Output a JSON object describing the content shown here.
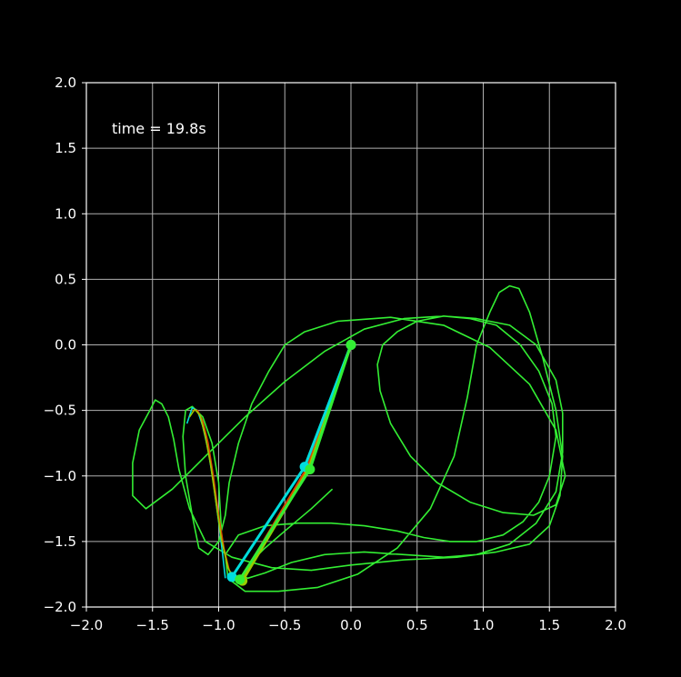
{
  "chart_data": {
    "type": "line",
    "title": "",
    "xlabel": "",
    "ylabel": "",
    "xlim": [
      -2.0,
      2.0
    ],
    "ylim": [
      -2.0,
      2.0
    ],
    "grid": true,
    "background": "#000000",
    "x_ticks": [
      "−2.0",
      "−1.5",
      "−1.0",
      "−0.5",
      "0.0",
      "0.5",
      "1.0",
      "1.5",
      "2.0"
    ],
    "x_tick_values": [
      -2.0,
      -1.5,
      -1.0,
      -0.5,
      0.0,
      0.5,
      1.0,
      1.5,
      2.0
    ],
    "y_ticks": [
      "2.0",
      "1.5",
      "1.0",
      "0.5",
      "0.0",
      "−0.5",
      "−1.0",
      "−1.5",
      "−2.0"
    ],
    "y_tick_values": [
      2.0,
      1.5,
      1.0,
      0.5,
      0.0,
      -0.5,
      -1.0,
      -1.5,
      -2.0
    ],
    "annotation": "time = 19.8s",
    "series": [
      {
        "color": "#33ee33",
        "kind": "trace",
        "x": [
          -0.14,
          -0.3,
          -0.5,
          -0.65,
          -0.75,
          -0.8,
          -0.82,
          -0.78,
          -0.65,
          -0.45,
          -0.2,
          0.1,
          0.4,
          0.7,
          0.95,
          1.2,
          1.4,
          1.55,
          1.6,
          1.6,
          1.55,
          1.4,
          1.2,
          0.95,
          0.7,
          0.4,
          0.1,
          -0.2,
          -0.5,
          -0.8,
          -1.1,
          -1.35,
          -1.55,
          -1.65,
          -1.65,
          -1.6,
          -1.52,
          -1.48,
          -1.43,
          -1.38,
          -1.34,
          -1.3,
          -1.22,
          -1.1,
          -0.9,
          -0.6,
          -0.3,
          0.0,
          0.4,
          0.8,
          1.1,
          1.35,
          1.5,
          1.58,
          1.6,
          1.55,
          1.45,
          1.35,
          1.27,
          1.2,
          1.12,
          1.05,
          0.95,
          0.88,
          0.78,
          0.6,
          0.35,
          0.05,
          -0.25,
          -0.55,
          -0.8,
          -0.93,
          -0.95,
          -0.85,
          -0.65,
          -0.4,
          -0.15,
          0.1,
          0.35,
          0.55,
          0.75,
          0.95,
          1.15,
          1.3,
          1.42,
          1.5,
          1.55,
          1.52,
          1.42,
          1.28,
          1.1,
          0.9,
          0.7,
          0.5,
          0.35,
          0.24,
          0.2,
          0.22,
          0.3,
          0.45,
          0.65,
          0.9,
          1.15,
          1.38,
          1.55,
          1.62,
          1.55,
          1.35,
          1.05,
          0.7,
          0.3,
          -0.1,
          -0.35,
          -0.5,
          -0.62,
          -0.75,
          -0.85,
          -0.92,
          -0.95,
          -1.0,
          -1.08,
          -1.15,
          -1.2,
          -1.25,
          -1.27,
          -1.25,
          -1.2,
          -1.12,
          -1.05,
          -1.0,
          -0.98
        ],
        "y": [
          -1.1,
          -1.25,
          -1.42,
          -1.55,
          -1.65,
          -1.72,
          -1.76,
          -1.78,
          -1.74,
          -1.66,
          -1.6,
          -1.58,
          -1.6,
          -1.62,
          -1.6,
          -1.52,
          -1.36,
          -1.12,
          -0.82,
          -0.52,
          -0.27,
          0.0,
          0.15,
          0.2,
          0.22,
          0.2,
          0.12,
          -0.05,
          -0.28,
          -0.55,
          -0.85,
          -1.1,
          -1.25,
          -1.15,
          -0.9,
          -0.65,
          -0.5,
          -0.42,
          -0.45,
          -0.55,
          -0.72,
          -0.95,
          -1.25,
          -1.5,
          -1.62,
          -1.7,
          -1.72,
          -1.68,
          -1.64,
          -1.62,
          -1.58,
          -1.52,
          -1.38,
          -1.15,
          -0.85,
          -0.5,
          -0.1,
          0.25,
          0.43,
          0.45,
          0.4,
          0.25,
          0.0,
          -0.4,
          -0.85,
          -1.25,
          -1.55,
          -1.75,
          -1.85,
          -1.88,
          -1.88,
          -1.78,
          -1.6,
          -1.45,
          -1.38,
          -1.36,
          -1.36,
          -1.38,
          -1.42,
          -1.47,
          -1.5,
          -1.5,
          -1.45,
          -1.35,
          -1.2,
          -1.0,
          -0.7,
          -0.45,
          -0.2,
          0.0,
          0.15,
          0.2,
          0.22,
          0.18,
          0.1,
          0.0,
          -0.15,
          -0.35,
          -0.6,
          -0.85,
          -1.05,
          -1.2,
          -1.28,
          -1.3,
          -1.22,
          -1.0,
          -0.65,
          -0.3,
          -0.02,
          0.15,
          0.21,
          0.18,
          0.1,
          0.0,
          -0.2,
          -0.45,
          -0.75,
          -1.05,
          -1.3,
          -1.5,
          -1.6,
          -1.55,
          -1.3,
          -1.0,
          -0.7,
          -0.5,
          -0.47,
          -0.55,
          -0.75,
          -1.05,
          -1.4
        ]
      },
      {
        "color": "#00dddd",
        "kind": "trace",
        "x": [
          -1.24,
          -1.2,
          -1.16,
          -1.12,
          -1.08,
          -1.04,
          -1.0,
          -0.97,
          -0.95
        ],
        "y": [
          -0.6,
          -0.48,
          -0.5,
          -0.62,
          -0.8,
          -1.05,
          -1.35,
          -1.6,
          -1.78
        ]
      },
      {
        "color": "#dd4400",
        "kind": "trace",
        "x": [
          -1.2,
          -1.16,
          -1.12,
          -1.08,
          -1.04,
          -1.0,
          -0.96,
          -0.92,
          -0.86
        ],
        "y": [
          -0.5,
          -0.5,
          -0.58,
          -0.75,
          -1.0,
          -1.3,
          -1.55,
          -1.72,
          -1.8
        ]
      },
      {
        "color": "#99cc00",
        "kind": "trace",
        "x": [
          -1.22,
          -1.18,
          -1.14,
          -1.1,
          -1.06,
          -1.02,
          -0.98,
          -0.93,
          -0.88
        ],
        "y": [
          -0.55,
          -0.49,
          -0.54,
          -0.7,
          -0.92,
          -1.2,
          -1.48,
          -1.7,
          -1.8
        ]
      },
      {
        "color": "#dd4400",
        "kind": "arm",
        "x": [
          0.0,
          -0.33,
          -0.83
        ],
        "y": [
          0.0,
          -0.94,
          -1.79
        ]
      },
      {
        "color": "#99cc00",
        "kind": "arm",
        "x": [
          0.0,
          -0.32,
          -0.82
        ],
        "y": [
          0.0,
          -0.95,
          -1.8
        ]
      },
      {
        "color": "#00dddd",
        "kind": "arm",
        "x": [
          0.0,
          -0.35,
          -0.9
        ],
        "y": [
          0.0,
          -0.93,
          -1.77
        ]
      },
      {
        "color": "#33ee33",
        "kind": "arm",
        "x": [
          0.0,
          -0.31,
          -0.84
        ],
        "y": [
          0.0,
          -0.95,
          -1.79
        ]
      }
    ]
  }
}
